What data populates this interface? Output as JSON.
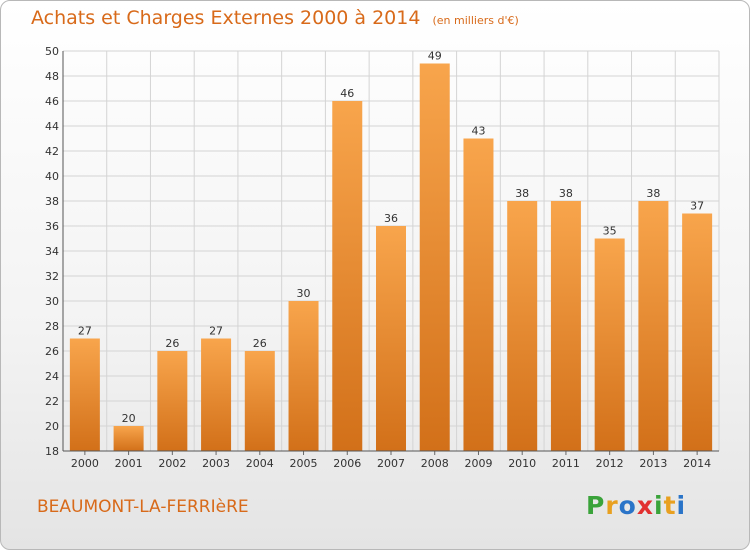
{
  "header": {
    "title": "Achats et Charges Externes 2000 à 2014",
    "subtitle": "(en milliers d'€)"
  },
  "footer": {
    "location": "BEAUMONT-LA-FERRIèRE",
    "logo": "Proxiti",
    "logo_colors": [
      "#3aa33a",
      "#e8a020",
      "#2a74c8",
      "#e23030",
      "#3aa33a",
      "#e8a020",
      "#2a74c8"
    ]
  },
  "chart_data": {
    "type": "bar",
    "title": "Achats et Charges Externes 2000 à 2014",
    "subtitle": "(en milliers d'€)",
    "xlabel": "",
    "ylabel": "",
    "categories": [
      "2000",
      "2001",
      "2002",
      "2003",
      "2004",
      "2005",
      "2006",
      "2007",
      "2008",
      "2009",
      "2010",
      "2011",
      "2012",
      "2013",
      "2014"
    ],
    "values": [
      27,
      20,
      26,
      27,
      26,
      30,
      46,
      36,
      49,
      43,
      38,
      38,
      35,
      38,
      37
    ],
    "ylim": [
      18,
      50
    ],
    "yticks": [
      18,
      20,
      22,
      24,
      26,
      28,
      30,
      32,
      34,
      36,
      38,
      40,
      42,
      44,
      46,
      48,
      50
    ],
    "grid": true,
    "legend": "none",
    "colors": {
      "bar_top": "#f8a54c",
      "bar_bottom": "#d27019",
      "grid": "#d4d4d4"
    }
  }
}
